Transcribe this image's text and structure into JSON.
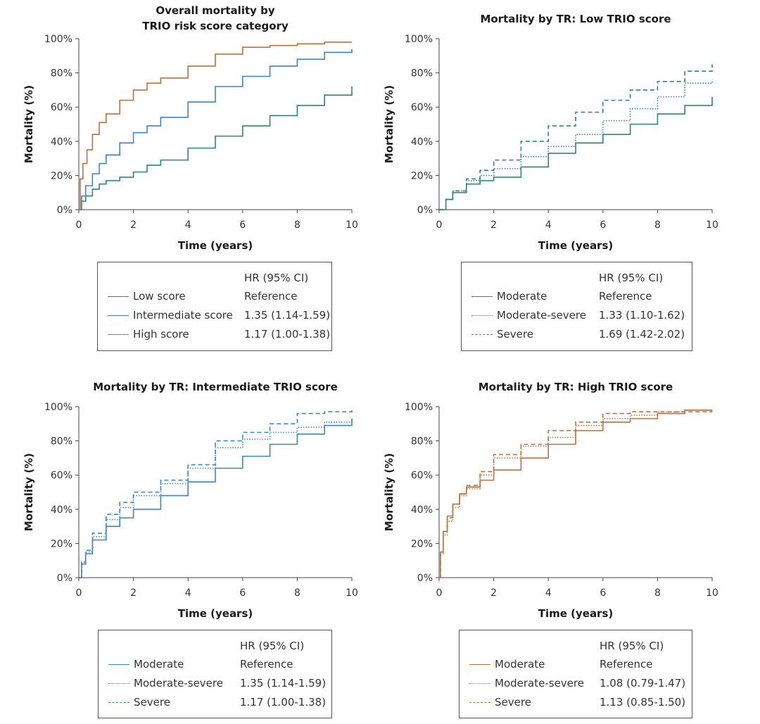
{
  "colors": {
    "low": "#2a8a6b",
    "intermediate": "#3d86c6",
    "high": "#c0703a"
  },
  "chart_data": [
    {
      "type": "line",
      "title": "Overall mortality by\nTRIO risk score category",
      "xlabel": "Time (years)",
      "ylabel": "Mortality (%)",
      "xlim": [
        0,
        10
      ],
      "ylim": [
        0,
        100
      ],
      "xticks": [
        "0",
        "2",
        "4",
        "6",
        "8",
        "10"
      ],
      "yticks": [
        "0%",
        "20%",
        "40%",
        "60%",
        "80%",
        "100%"
      ],
      "legend_header": "HR (95% CI)",
      "series": [
        {
          "name": "Low score",
          "hr": "Reference",
          "color": "#2a8a6b",
          "style": "solid",
          "x": [
            0,
            0.1,
            0.25,
            0.5,
            0.75,
            1,
            1.5,
            2,
            2.5,
            3,
            4,
            5,
            6,
            7,
            8,
            9,
            10
          ],
          "y": [
            0,
            5,
            8,
            12,
            15,
            17,
            19,
            22,
            26,
            29,
            36,
            43,
            49,
            55,
            61,
            67,
            72
          ]
        },
        {
          "name": "Intermediate score",
          "hr": "1.35 (1.14-1.59)",
          "color": "#3d86c6",
          "style": "solid",
          "x": [
            0,
            0.1,
            0.25,
            0.5,
            0.75,
            1,
            1.5,
            2,
            2.5,
            3,
            4,
            5,
            6,
            7,
            8,
            9,
            10
          ],
          "y": [
            0,
            8,
            14,
            21,
            27,
            32,
            39,
            45,
            49,
            54,
            63,
            72,
            78,
            84,
            88,
            92,
            94
          ]
        },
        {
          "name": "High score",
          "hr": "1.17 (1.00-1.38)",
          "color": "#c0703a",
          "style": "solid",
          "x": [
            0,
            0.05,
            0.15,
            0.3,
            0.5,
            0.75,
            1,
            1.5,
            2,
            2.5,
            3,
            4,
            5,
            6,
            7,
            8,
            9,
            10
          ],
          "y": [
            0,
            18,
            27,
            35,
            44,
            51,
            56,
            64,
            70,
            74,
            77,
            84,
            91,
            95,
            96,
            97,
            98,
            98
          ]
        }
      ]
    },
    {
      "type": "line",
      "title": "Mortality by TR: Low TRIO score",
      "xlabel": "Time (years)",
      "ylabel": "Mortality (%)",
      "xlim": [
        0,
        10
      ],
      "ylim": [
        0,
        100
      ],
      "xticks": [
        "0",
        "2",
        "4",
        "6",
        "8",
        "10"
      ],
      "yticks": [
        "0%",
        "20%",
        "40%",
        "60%",
        "80%",
        "100%"
      ],
      "legend_header": "HR (95% CI)",
      "series": [
        {
          "name": "Moderate",
          "hr": "Reference",
          "color": "#2a8a6b",
          "style": "solid",
          "x": [
            0,
            0.25,
            0.5,
            1,
            1.5,
            2,
            3,
            4,
            5,
            6,
            7,
            8,
            9,
            10
          ],
          "y": [
            0,
            6,
            10,
            15,
            17,
            19,
            25,
            33,
            39,
            44,
            50,
            56,
            61,
            66
          ]
        },
        {
          "name": "Moderate-severe",
          "hr": "1.33 (1.10-1.62)",
          "color": "#2a8a6b",
          "style": "dotted",
          "x": [
            0,
            0.25,
            0.5,
            1,
            1.5,
            2,
            3,
            4,
            5,
            6,
            7,
            8,
            9,
            10
          ],
          "y": [
            0,
            6,
            11,
            17,
            20,
            24,
            31,
            37,
            44,
            52,
            59,
            66,
            74,
            76
          ]
        },
        {
          "name": "Severe",
          "hr": "1.69 (1.42-2.02)",
          "color": "#2a8a6b",
          "style": "dashed",
          "x": [
            0,
            0.25,
            0.5,
            1,
            1.5,
            2,
            3,
            4,
            5,
            6,
            7,
            8,
            9,
            10
          ],
          "y": [
            0,
            6,
            11,
            18,
            23,
            29,
            40,
            49,
            57,
            64,
            70,
            75,
            81,
            85
          ]
        }
      ]
    },
    {
      "type": "line",
      "title": "Mortality by TR: Intermediate TRIO score",
      "xlabel": "Time (years)",
      "ylabel": "Mortality (%)",
      "xlim": [
        0,
        10
      ],
      "ylim": [
        0,
        100
      ],
      "xticks": [
        "0",
        "2",
        "4",
        "6",
        "8",
        "10"
      ],
      "yticks": [
        "0%",
        "20%",
        "40%",
        "60%",
        "80%",
        "100%"
      ],
      "legend_header": "HR (95% CI)",
      "series": [
        {
          "name": "Moderate",
          "hr": "Reference",
          "color": "#3d86c6",
          "style": "solid",
          "x": [
            0,
            0.1,
            0.25,
            0.5,
            1,
            1.5,
            2,
            3,
            4,
            5,
            6,
            7,
            8,
            9,
            10
          ],
          "y": [
            0,
            8,
            14,
            22,
            30,
            35,
            40,
            48,
            56,
            64,
            71,
            78,
            84,
            89,
            93
          ]
        },
        {
          "name": "Moderate-severe",
          "hr": "1.35 (1.14-1.59)",
          "color": "#3d86c6",
          "style": "dotted",
          "x": [
            0,
            0.1,
            0.25,
            0.5,
            1,
            1.5,
            2,
            3,
            4,
            5,
            6,
            7,
            8,
            9,
            10
          ],
          "y": [
            0,
            9,
            15,
            24,
            34,
            41,
            48,
            55,
            64,
            76,
            81,
            85,
            88,
            91,
            93
          ]
        },
        {
          "name": "Severe",
          "hr": "1.17 (1.00-1.38)",
          "color": "#3d86c6",
          "style": "dashed",
          "x": [
            0,
            0.1,
            0.25,
            0.5,
            1,
            1.5,
            2,
            3,
            4,
            5,
            6,
            7,
            8,
            9,
            10
          ],
          "y": [
            0,
            9,
            16,
            26,
            37,
            44,
            50,
            57,
            66,
            80,
            85,
            90,
            96,
            97,
            98
          ]
        }
      ]
    },
    {
      "type": "line",
      "title": "Mortality by TR: High TRIO score",
      "xlabel": "Time (years)",
      "ylabel": "Mortality (%)",
      "xlim": [
        0,
        10
      ],
      "ylim": [
        0,
        100
      ],
      "xticks": [
        "0",
        "2",
        "4",
        "6",
        "8",
        "10"
      ],
      "yticks": [
        "0%",
        "20%",
        "40%",
        "60%",
        "80%",
        "100%"
      ],
      "legend_header": "HR (95% CI)",
      "series": [
        {
          "name": "Moderate",
          "hr": "Reference",
          "color": "#c0703a",
          "style": "solid",
          "x": [
            0,
            0.05,
            0.15,
            0.3,
            0.5,
            0.75,
            1,
            1.5,
            2,
            3,
            4,
            5,
            6,
            7,
            8,
            9,
            10
          ],
          "y": [
            0,
            15,
            27,
            36,
            43,
            49,
            53,
            57,
            63,
            70,
            78,
            86,
            91,
            93,
            96,
            98,
            98
          ]
        },
        {
          "name": "Moderate-severe",
          "hr": "1.08 (0.79-1.47)",
          "color": "#c0703a",
          "style": "dotted",
          "x": [
            0,
            0.05,
            0.15,
            0.3,
            0.5,
            0.75,
            1,
            1.5,
            2,
            3,
            4,
            5,
            6,
            7,
            8,
            9,
            10
          ],
          "y": [
            0,
            14,
            25,
            33,
            41,
            48,
            52,
            60,
            70,
            77,
            82,
            89,
            93,
            95,
            97,
            98,
            97
          ]
        },
        {
          "name": "Severe",
          "hr": "1.13 (0.85-1.50)",
          "color": "#c0703a",
          "style": "dashed",
          "x": [
            0,
            0.05,
            0.15,
            0.3,
            0.5,
            0.75,
            1,
            1.5,
            2,
            3,
            4,
            5,
            6,
            7,
            8,
            9,
            10
          ],
          "y": [
            0,
            15,
            27,
            35,
            43,
            49,
            54,
            62,
            72,
            78,
            86,
            91,
            96,
            97,
            97,
            97,
            97
          ]
        }
      ]
    }
  ]
}
